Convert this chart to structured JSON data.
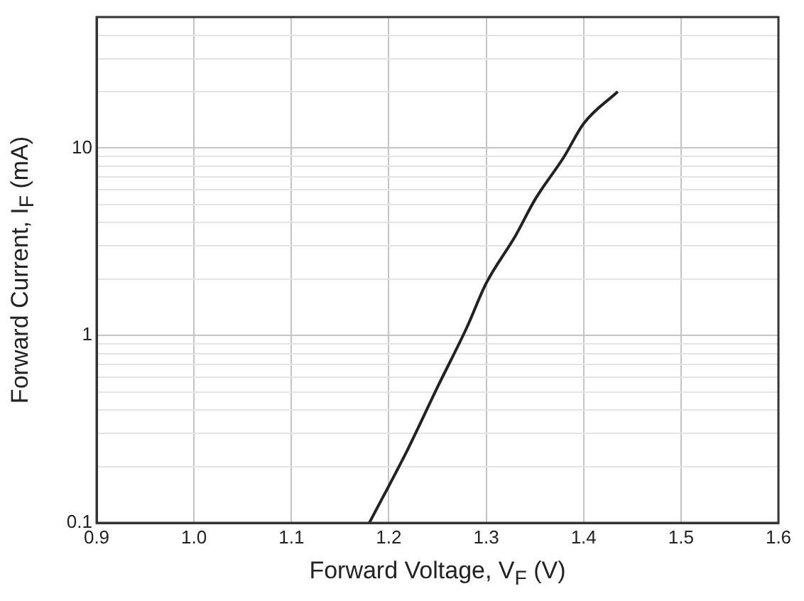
{
  "chart_data": {
    "type": "line",
    "xlabel": "Forward Voltage, V$_{F}$ (V)",
    "ylabel": "Forward Current, I$_{F}$ (mA)",
    "log": "y",
    "grid": true,
    "marker": "none",
    "line_style": "solid",
    "xlim": [
      0.9,
      1.6
    ],
    "xticks": [
      {
        "value": 0.9,
        "label": "0.9"
      },
      {
        "value": 1.0,
        "label": "1.0"
      },
      {
        "value": 1.1,
        "label": "1.1"
      },
      {
        "value": 1.2,
        "label": "1.2"
      },
      {
        "value": 1.3,
        "label": "1.3"
      },
      {
        "value": 1.4,
        "label": "1.4"
      },
      {
        "value": 1.5,
        "label": "1.5"
      },
      {
        "value": 1.6,
        "label": "1.6"
      }
    ],
    "ylim": [
      0.1,
      50
    ],
    "yticks": [
      0.1,
      {
        "value": 0.2,
        "label": null
      },
      {
        "value": 0.3,
        "label": null
      },
      {
        "value": 0.4,
        "label": null
      },
      {
        "value": 0.5,
        "label": null
      },
      {
        "value": 0.6,
        "label": null
      },
      {
        "value": 0.7,
        "label": null
      },
      {
        "value": 0.8,
        "label": null
      },
      {
        "value": 0.9,
        "label": null
      },
      1,
      {
        "value": 2,
        "label": null
      },
      {
        "value": 3,
        "label": null
      },
      {
        "value": 4,
        "label": null
      },
      {
        "value": 5,
        "label": null
      },
      {
        "value": 6,
        "label": null
      },
      {
        "value": 7,
        "label": null
      },
      {
        "value": 8,
        "label": null
      },
      {
        "value": 9,
        "label": null
      },
      10,
      {
        "value": 20,
        "label": null
      },
      {
        "value": 30,
        "label": null
      },
      {
        "value": 40,
        "label": null
      }
    ],
    "series": [
      {
        "color": "#222222",
        "x": [
          1.18,
          1.22,
          1.25,
          1.28,
          1.3,
          1.33,
          1.35,
          1.38,
          1.4,
          1.435
        ],
        "values": [
          0.1,
          0.25,
          0.53,
          1.1,
          1.9,
          3.4,
          5.3,
          9,
          13.5,
          20
        ]
      }
    ]
  }
}
